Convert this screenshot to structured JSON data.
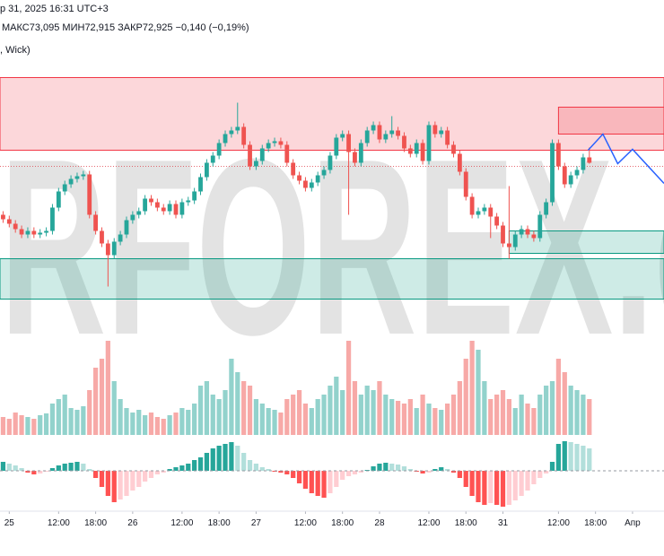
{
  "chart_data": {
    "type": "candlestick",
    "header_line1": "р 31, 2025 16:31 UTC+3",
    "header_line2": "МАКС73,095  МИН72,915  ЗАКР72,925  −0,140 (−0,19%)",
    "header_line3": ", Wick)",
    "watermark": "RFOREX.c",
    "up_color": "#26a69a",
    "down_color": "#ef5350",
    "ylim": [
      71.2,
      74.2
    ],
    "xlim": [
      -0.5,
      107.1
    ],
    "xticks": [
      {
        "value": 1,
        "label": "25"
      },
      {
        "value": 9,
        "label": "12:00"
      },
      {
        "value": 15,
        "label": "18:00"
      },
      {
        "value": 21,
        "label": "26"
      },
      {
        "value": 29,
        "label": "12:00"
      },
      {
        "value": 35,
        "label": "18:00"
      },
      {
        "value": 41,
        "label": "27"
      },
      {
        "value": 49,
        "label": "12:00"
      },
      {
        "value": 55,
        "label": "18:00"
      },
      {
        "value": 61,
        "label": "28"
      },
      {
        "value": 69,
        "label": "12:00"
      },
      {
        "value": 75,
        "label": "18:00"
      },
      {
        "value": 81,
        "label": "31"
      },
      {
        "value": 90,
        "label": "12:00"
      },
      {
        "value": 96,
        "label": "18:00"
      },
      {
        "value": 102,
        "label": "Апр"
      }
    ],
    "open": [
      72.345,
      72.295,
      72.245,
      72.185,
      72.125,
      72.165,
      72.125,
      72.145,
      72.165,
      72.425,
      72.605,
      72.685,
      72.745,
      72.775,
      72.795,
      72.345,
      72.165,
      72.025,
      71.895,
      72.045,
      72.125,
      72.285,
      72.345,
      72.385,
      72.525,
      72.485,
      72.425,
      72.385,
      72.465,
      72.345,
      72.485,
      72.505,
      72.605,
      72.765,
      72.925,
      73.005,
      73.145,
      73.245,
      73.285,
      73.325,
      73.125,
      72.885,
      72.945,
      73.085,
      73.145,
      73.165,
      73.125,
      72.925,
      72.785,
      72.725,
      72.645,
      72.705,
      72.785,
      72.845,
      73.005,
      73.205,
      73.245,
      73.045,
      72.925,
      73.145,
      73.285,
      73.345,
      73.185,
      73.245,
      73.285,
      73.225,
      73.085,
      73.025,
      73.145,
      72.945,
      73.345,
      73.245,
      73.285,
      73.125,
      73.025,
      72.825,
      72.545,
      72.345,
      72.385,
      72.425,
      72.325,
      72.225,
      72.025,
      71.985,
      72.125,
      72.185,
      72.125,
      72.085,
      72.345,
      72.485,
      73.145,
      72.885,
      72.685,
      72.785,
      72.845,
      72.985
    ],
    "high": [
      72.385,
      72.335,
      72.285,
      72.225,
      72.205,
      72.205,
      72.185,
      72.205,
      72.465,
      72.645,
      72.725,
      72.785,
      72.815,
      72.835,
      72.835,
      72.385,
      72.205,
      72.065,
      72.085,
      72.165,
      72.325,
      72.385,
      72.425,
      72.565,
      72.565,
      72.525,
      72.465,
      72.505,
      72.505,
      72.525,
      72.545,
      72.645,
      72.805,
      72.965,
      73.045,
      73.185,
      73.285,
      73.325,
      73.595,
      73.365,
      73.165,
      72.985,
      73.125,
      73.185,
      73.205,
      73.205,
      73.165,
      72.965,
      72.825,
      72.765,
      72.745,
      72.825,
      72.885,
      73.045,
      73.245,
      73.285,
      73.285,
      73.085,
      73.185,
      73.325,
      73.385,
      73.385,
      73.285,
      73.445,
      73.325,
      73.265,
      73.125,
      73.185,
      73.185,
      73.385,
      73.385,
      73.325,
      73.325,
      73.165,
      73.065,
      72.865,
      72.585,
      72.425,
      72.465,
      72.465,
      72.365,
      72.265,
      72.665,
      72.165,
      72.225,
      72.225,
      72.165,
      72.385,
      72.525,
      73.185,
      73.185,
      72.925,
      72.825,
      72.885,
      73.025,
      73.095
    ],
    "low": [
      72.255,
      72.205,
      72.145,
      72.085,
      72.085,
      72.085,
      72.085,
      72.105,
      72.125,
      72.385,
      72.565,
      72.645,
      72.705,
      72.735,
      72.305,
      72.125,
      71.985,
      71.545,
      71.855,
      72.005,
      72.085,
      72.245,
      72.305,
      72.345,
      72.445,
      72.385,
      72.345,
      72.345,
      72.305,
      72.305,
      72.445,
      72.465,
      72.565,
      72.725,
      72.885,
      72.965,
      73.105,
      73.205,
      73.245,
      73.085,
      72.845,
      72.845,
      72.905,
      73.045,
      73.105,
      73.085,
      72.885,
      72.745,
      72.685,
      72.605,
      72.605,
      72.665,
      72.745,
      72.805,
      72.965,
      73.165,
      72.345,
      72.885,
      72.885,
      73.105,
      73.245,
      73.145,
      73.145,
      73.205,
      73.185,
      73.045,
      72.985,
      72.985,
      72.905,
      72.905,
      73.205,
      73.205,
      73.085,
      72.985,
      72.785,
      72.505,
      72.305,
      72.305,
      72.345,
      72.085,
      72.185,
      71.985,
      71.855,
      71.945,
      72.085,
      72.085,
      72.045,
      72.045,
      72.305,
      72.445,
      72.845,
      72.645,
      72.645,
      72.745,
      72.805,
      72.915
    ],
    "close": [
      72.295,
      72.245,
      72.185,
      72.125,
      72.165,
      72.125,
      72.145,
      72.165,
      72.425,
      72.605,
      72.685,
      72.745,
      72.775,
      72.795,
      72.345,
      72.165,
      72.025,
      71.895,
      72.045,
      72.125,
      72.285,
      72.345,
      72.385,
      72.525,
      72.485,
      72.425,
      72.385,
      72.465,
      72.345,
      72.485,
      72.505,
      72.605,
      72.765,
      72.925,
      73.005,
      73.145,
      73.245,
      73.285,
      73.325,
      73.125,
      72.885,
      72.945,
      73.085,
      73.145,
      73.165,
      73.125,
      72.925,
      72.785,
      72.725,
      72.645,
      72.705,
      72.785,
      72.845,
      73.005,
      73.205,
      73.245,
      73.045,
      72.925,
      73.145,
      73.285,
      73.345,
      73.185,
      73.245,
      73.285,
      73.225,
      73.085,
      73.025,
      73.145,
      72.945,
      73.345,
      73.245,
      73.285,
      73.125,
      73.025,
      72.825,
      72.545,
      72.345,
      72.385,
      72.425,
      72.325,
      72.225,
      72.025,
      71.985,
      72.125,
      72.185,
      72.125,
      72.085,
      72.345,
      72.485,
      73.145,
      72.885,
      72.685,
      72.785,
      72.845,
      72.985,
      72.925
    ],
    "volume": [
      20,
      18,
      25,
      22,
      20,
      18,
      22,
      24,
      35,
      40,
      45,
      30,
      28,
      32,
      50,
      75,
      85,
      105,
      60,
      40,
      30,
      25,
      28,
      22,
      25,
      20,
      18,
      22,
      25,
      30,
      28,
      35,
      55,
      60,
      45,
      40,
      50,
      85,
      70,
      60,
      55,
      40,
      35,
      30,
      28,
      25,
      40,
      45,
      50,
      35,
      30,
      40,
      45,
      55,
      65,
      50,
      105,
      60,
      45,
      55,
      50,
      60,
      45,
      40,
      38,
      35,
      40,
      30,
      45,
      35,
      30,
      28,
      35,
      45,
      60,
      85,
      105,
      95,
      60,
      40,
      45,
      50,
      40,
      30,
      45,
      35,
      30,
      45,
      55,
      60,
      85,
      70,
      55,
      50,
      45,
      40
    ],
    "volume_ylim": [
      0,
      110
    ],
    "oscillator": [
      10,
      8,
      6,
      3,
      -2,
      -4,
      -3,
      -1,
      3,
      6,
      8,
      9,
      10,
      8,
      2,
      -8,
      -18,
      -28,
      -35,
      -32,
      -28,
      -22,
      -18,
      -12,
      -8,
      -4,
      -2,
      2,
      4,
      6,
      8,
      12,
      15,
      20,
      25,
      28,
      30,
      32,
      28,
      20,
      12,
      8,
      4,
      2,
      -1,
      -2,
      -4,
      -8,
      -14,
      -20,
      -25,
      -28,
      -30,
      -25,
      -18,
      -10,
      -6,
      -4,
      -2,
      1,
      5,
      8,
      9,
      8,
      7,
      5,
      2,
      -1,
      -3,
      -2,
      2,
      4,
      2,
      -2,
      -8,
      -18,
      -28,
      -35,
      -38,
      -36,
      -38,
      -40,
      -38,
      -33,
      -28,
      -22,
      -15,
      -8,
      -3,
      10,
      30,
      33,
      32,
      30,
      28,
      25
    ],
    "oscillator_ylim": [
      -40,
      35
    ],
    "oscillator_colors": [
      "#26a69a",
      "#b2dfdb",
      "#ffcdd2",
      "#ff5252"
    ],
    "zones": [
      {
        "color": "#f23645",
        "from": -0.5,
        "ylim": [
          73.065,
          73.875
        ]
      },
      {
        "color": "#f23645",
        "from": 90,
        "ylim": [
          73.245,
          73.545
        ]
      },
      {
        "color": "#089981",
        "from": 82,
        "ylim": [
          71.915,
          72.165
        ]
      },
      {
        "color": "#089981",
        "from": -0.5,
        "ylim": [
          71.405,
          71.855
        ]
      }
    ],
    "price_line": 72.885,
    "projection": {
      "color": "#2962ff",
      "x": [
        94.8,
        97.2,
        99.6,
        102.0,
        107.1
      ],
      "y": [
        73.065,
        73.245,
        72.915,
        73.075,
        72.695
      ]
    }
  }
}
